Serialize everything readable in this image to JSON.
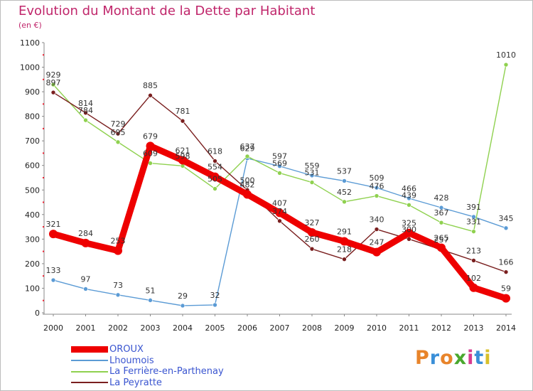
{
  "title": "Evolution du Montant de la Dette par Habitant",
  "unit": "(en €)",
  "brand": "Proxiti",
  "chart_data": {
    "type": "line",
    "title": "Evolution du Montant de la Dette par Habitant",
    "ylabel": "(en €)",
    "xlabel": "",
    "x": [
      "2000",
      "2001",
      "2002",
      "2003",
      "2004",
      "2005",
      "2006",
      "2007",
      "2008",
      "2009",
      "2010",
      "2011",
      "2012",
      "2013",
      "2014"
    ],
    "yticks": [
      0,
      100,
      200,
      300,
      400,
      500,
      600,
      700,
      800,
      900,
      1000,
      1100
    ],
    "ylim": [
      0,
      1100
    ],
    "grid": false,
    "legend": "bottom-left",
    "series": [
      {
        "name": "OROUX",
        "color": "#ee0000",
        "values": [
          321,
          284,
          253,
          679,
          621,
          554,
          482,
          407,
          327,
          291,
          247,
          325,
          265,
          102,
          59
        ]
      },
      {
        "name": "Lhoumois",
        "color": "#5b9bd5",
        "values": [
          133,
          97,
          73,
          51,
          29,
          32,
          629,
          597,
          559,
          537,
          509,
          466,
          428,
          391,
          345
        ]
      },
      {
        "name": "La Ferrière-en-Parthenay",
        "color": "#8fd14f",
        "values": [
          929,
          784,
          695,
          609,
          598,
          505,
          637,
          569,
          531,
          452,
          476,
          439,
          367,
          331,
          1010
        ]
      },
      {
        "name": "La Peyratte",
        "color": "#7a1f1f",
        "values": [
          897,
          814,
          729,
          885,
          781,
          618,
          500,
          374,
          260,
          218,
          340,
          300,
          257,
          213,
          166
        ]
      }
    ]
  }
}
